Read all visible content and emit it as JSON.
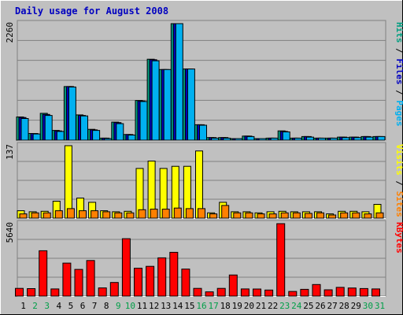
{
  "chart_data": [
    {
      "type": "bar",
      "title": "Daily usage for August 2008",
      "categories": [
        "1",
        "2",
        "3",
        "4",
        "5",
        "6",
        "7",
        "8",
        "9",
        "10",
        "11",
        "12",
        "13",
        "14",
        "15",
        "16",
        "17",
        "18",
        "19",
        "20",
        "21",
        "22",
        "23",
        "24",
        "25",
        "26",
        "27",
        "28",
        "29",
        "30",
        "31"
      ],
      "weekend_days": [
        "2",
        "3",
        "9",
        "10",
        "16",
        "17",
        "23",
        "24",
        "30",
        "31"
      ],
      "ylim": [
        0,
        2260
      ],
      "ytick_label": "2260",
      "legend_labels": [
        "Pages",
        "Files",
        "Hits"
      ],
      "legend_separator": " / ",
      "grid": true,
      "series": [
        {
          "name": "Hits",
          "color": "#009e80",
          "values": [
            450,
            130,
            520,
            190,
            1040,
            490,
            210,
            40,
            350,
            110,
            770,
            1570,
            1370,
            2260,
            1380,
            300,
            50,
            50,
            30,
            80,
            30,
            40,
            180,
            40,
            70,
            40,
            40,
            60,
            60,
            70,
            70
          ]
        },
        {
          "name": "Files",
          "color": "#0000c0",
          "values": [
            440,
            130,
            500,
            180,
            1040,
            480,
            200,
            40,
            340,
            110,
            760,
            1560,
            1370,
            2260,
            1380,
            300,
            50,
            50,
            30,
            80,
            30,
            40,
            170,
            40,
            70,
            40,
            40,
            60,
            60,
            70,
            70
          ]
        },
        {
          "name": "Pages",
          "color": "#00b0f0",
          "values": [
            420,
            120,
            480,
            170,
            1030,
            470,
            190,
            30,
            320,
            100,
            750,
            1540,
            1370,
            2260,
            1380,
            290,
            40,
            40,
            30,
            70,
            30,
            40,
            160,
            40,
            60,
            40,
            40,
            50,
            50,
            60,
            70
          ]
        }
      ]
    },
    {
      "type": "bar",
      "categories": [
        "1",
        "2",
        "3",
        "4",
        "5",
        "6",
        "7",
        "8",
        "9",
        "10",
        "11",
        "12",
        "13",
        "14",
        "15",
        "16",
        "17",
        "18",
        "19",
        "20",
        "21",
        "22",
        "23",
        "24",
        "25",
        "26",
        "27",
        "28",
        "29",
        "30",
        "31"
      ],
      "ylim": [
        0,
        137
      ],
      "ytick_label": "137",
      "legend_labels": [
        "Sites",
        "Visits"
      ],
      "legend_separator": " / ",
      "grid": true,
      "series": [
        {
          "name": "Visits",
          "color": "#ffff00",
          "values": [
            14,
            12,
            13,
            32,
            137,
            38,
            30,
            14,
            12,
            13,
            94,
            108,
            94,
            98,
            98,
            127,
            10,
            30,
            12,
            12,
            10,
            12,
            13,
            12,
            12,
            12,
            8,
            13,
            13,
            12,
            26
          ]
        },
        {
          "name": "Sites",
          "color": "#ff8000",
          "values": [
            8,
            10,
            10,
            14,
            18,
            14,
            14,
            12,
            10,
            10,
            16,
            17,
            17,
            19,
            18,
            18,
            8,
            24,
            10,
            10,
            8,
            8,
            10,
            10,
            9,
            10,
            6,
            10,
            10,
            8,
            10
          ]
        }
      ]
    },
    {
      "type": "bar",
      "ylim": [
        0,
        5640
      ],
      "ytick_label": "5640",
      "legend_labels": [
        "KBytes"
      ],
      "grid": true,
      "categories": [
        "1",
        "2",
        "3",
        "4",
        "5",
        "6",
        "7",
        "8",
        "9",
        "10",
        "11",
        "12",
        "13",
        "14",
        "15",
        "16",
        "17",
        "18",
        "19",
        "20",
        "21",
        "22",
        "23",
        "24",
        "25",
        "26",
        "27",
        "28",
        "29",
        "30",
        "31"
      ],
      "series": [
        {
          "name": "KBytes",
          "color": "#ff0000",
          "values": [
            600,
            580,
            3530,
            560,
            2570,
            2080,
            2770,
            640,
            1060,
            4470,
            2170,
            2320,
            2980,
            3410,
            2100,
            600,
            330,
            600,
            1640,
            560,
            550,
            470,
            5640,
            360,
            530,
            900,
            490,
            680,
            630,
            590,
            560
          ]
        }
      ]
    }
  ],
  "colors": {
    "background": "#c0c0c0",
    "frame": "#000000",
    "weekday_label": "#000000",
    "weekend_label": "#009e48",
    "title": "#0000c0",
    "bar_edge": "#000000"
  }
}
